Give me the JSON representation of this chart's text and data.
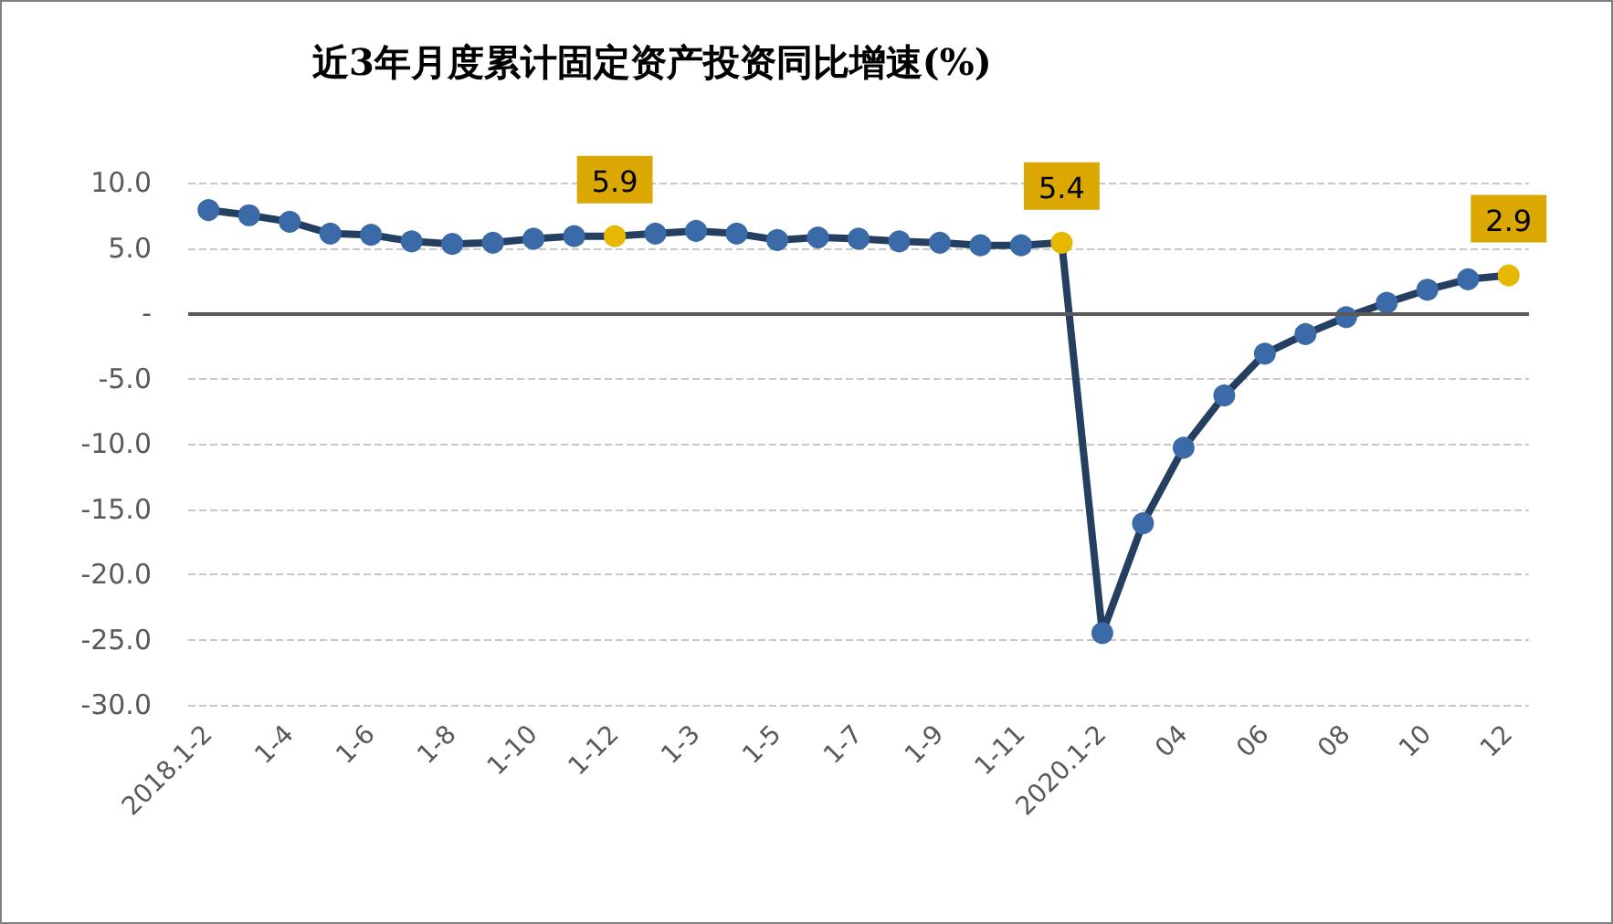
{
  "chart_data": {
    "type": "line",
    "title": "近3年月度累计固定资产投资同比增速(%)",
    "categories": [
      "2018.1-2",
      null,
      "1-4",
      null,
      "1-6",
      null,
      "1-8",
      null,
      "1-10",
      null,
      "1-12",
      null,
      "1-3",
      null,
      "1-5",
      null,
      "1-7",
      null,
      "1-9",
      null,
      "1-11",
      null,
      "2020.1-2",
      null,
      "04",
      null,
      "06",
      null,
      "08",
      null,
      "10",
      null,
      "12"
    ],
    "series": [
      {
        "color": "#243f60",
        "values": [
          7.9,
          7.5,
          7.0,
          6.1,
          6.0,
          5.5,
          5.3,
          5.4,
          5.7,
          5.9,
          5.9,
          6.1,
          6.3,
          6.1,
          5.6,
          5.8,
          5.7,
          5.5,
          5.4,
          5.2,
          5.2,
          5.4,
          -24.5,
          -16.1,
          -10.3,
          -6.3,
          -3.1,
          -1.6,
          -0.3,
          0.8,
          1.8,
          2.6,
          2.9
        ],
        "colors": [
          "#3a6aa8",
          "#3a6aa8",
          "#3a6aa8",
          "#3a6aa8",
          "#3a6aa8",
          "#3a6aa8",
          "#3a6aa8",
          "#3a6aa8",
          "#3a6aa8",
          "#3a6aa8",
          "#e6b800",
          "#3a6aa8",
          "#3a6aa8",
          "#3a6aa8",
          "#3a6aa8",
          "#3a6aa8",
          "#3a6aa8",
          "#3a6aa8",
          "#3a6aa8",
          "#3a6aa8",
          "#3a6aa8",
          "#e6b800",
          "#3a6aa8",
          "#3a6aa8",
          "#3a6aa8",
          "#3a6aa8",
          "#3a6aa8",
          "#3a6aa8",
          "#3a6aa8",
          "#3a6aa8",
          "#3a6aa8",
          "#3a6aa8",
          "#e6b800"
        ],
        "value_labels": [
          null,
          null,
          null,
          null,
          null,
          null,
          null,
          null,
          null,
          null,
          "5.9",
          null,
          null,
          null,
          null,
          null,
          null,
          null,
          null,
          null,
          null,
          "5.4",
          null,
          null,
          null,
          null,
          null,
          null,
          null,
          null,
          null,
          null,
          "2.9"
        ]
      }
    ],
    "ylim": [
      -30,
      10
    ],
    "yticks": [
      {
        "value": -30,
        "label": "-30.0"
      },
      {
        "value": -25,
        "label": "-25.0"
      },
      {
        "value": -20,
        "label": "-20.0"
      },
      {
        "value": -15,
        "label": "-15.0"
      },
      {
        "value": -10,
        "label": "-10.0"
      },
      {
        "value": -5,
        "label": "-5.0"
      },
      {
        "value": 0,
        "label": "-"
      },
      {
        "value": 5,
        "label": "5.0"
      },
      {
        "value": 10,
        "label": "10.0"
      }
    ],
    "ref_lines": [
      {
        "axis": "y",
        "value": 0,
        "color": "#595959"
      }
    ],
    "grid": "y",
    "marker": "circle",
    "line_style": "solid"
  }
}
